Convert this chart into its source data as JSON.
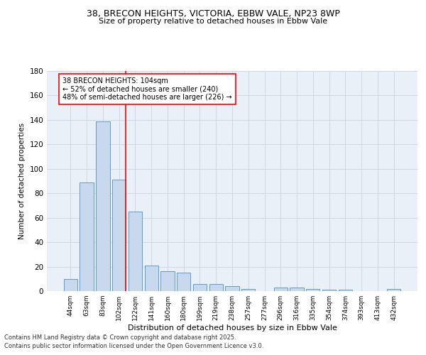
{
  "title_line1": "38, BRECON HEIGHTS, VICTORIA, EBBW VALE, NP23 8WP",
  "title_line2": "Size of property relative to detached houses in Ebbw Vale",
  "xlabel": "Distribution of detached houses by size in Ebbw Vale",
  "ylabel": "Number of detached properties",
  "categories": [
    "44sqm",
    "63sqm",
    "83sqm",
    "102sqm",
    "122sqm",
    "141sqm",
    "160sqm",
    "180sqm",
    "199sqm",
    "219sqm",
    "238sqm",
    "257sqm",
    "277sqm",
    "296sqm",
    "316sqm",
    "335sqm",
    "354sqm",
    "374sqm",
    "393sqm",
    "413sqm",
    "432sqm"
  ],
  "values": [
    10,
    89,
    139,
    91,
    65,
    21,
    16,
    15,
    6,
    6,
    4,
    2,
    0,
    3,
    3,
    2,
    1,
    1,
    0,
    0,
    2
  ],
  "bar_color": "#c9d9ed",
  "bar_edge_color": "#5b9bd5",
  "red_line_index": 3,
  "annotation_text": "38 BRECON HEIGHTS: 104sqm\n← 52% of detached houses are smaller (240)\n48% of semi-detached houses are larger (226) →",
  "grid_color": "#d0d8e8",
  "background_color": "#eaf0f8",
  "footer_line1": "Contains HM Land Registry data © Crown copyright and database right 2025.",
  "footer_line2": "Contains public sector information licensed under the Open Government Licence v3.0.",
  "ylim": [
    0,
    180
  ],
  "yticks": [
    0,
    20,
    40,
    60,
    80,
    100,
    120,
    140,
    160,
    180
  ]
}
